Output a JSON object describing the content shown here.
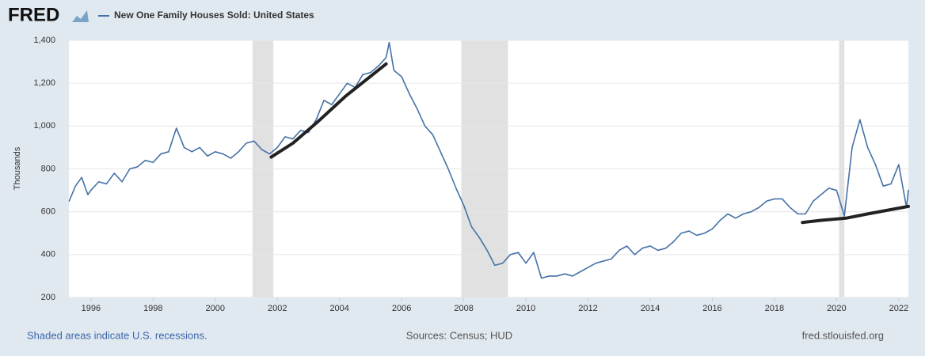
{
  "logo": "FRED",
  "chart_data": {
    "type": "line",
    "series": [
      {
        "name": "New One Family Houses Sold: United States",
        "color": "#4572a7",
        "x": [
          1995.3,
          1995.5,
          1995.7,
          1995.9,
          1996.0,
          1996.25,
          1996.5,
          1996.75,
          1997.0,
          1997.25,
          1997.5,
          1997.75,
          1998.0,
          1998.25,
          1998.5,
          1998.75,
          1999.0,
          1999.25,
          1999.5,
          1999.75,
          2000.0,
          2000.25,
          2000.5,
          2000.75,
          2001.0,
          2001.25,
          2001.5,
          2001.75,
          2002.0,
          2002.25,
          2002.5,
          2002.75,
          2003.0,
          2003.25,
          2003.5,
          2003.75,
          2004.0,
          2004.25,
          2004.5,
          2004.75,
          2005.0,
          2005.25,
          2005.5,
          2005.6,
          2005.75,
          2006.0,
          2006.25,
          2006.5,
          2006.75,
          2007.0,
          2007.25,
          2007.5,
          2007.75,
          2008.0,
          2008.25,
          2008.5,
          2008.75,
          2009.0,
          2009.25,
          2009.5,
          2009.75,
          2010.0,
          2010.25,
          2010.5,
          2010.75,
          2011.0,
          2011.25,
          2011.5,
          2011.75,
          2012.0,
          2012.25,
          2012.5,
          2012.75,
          2013.0,
          2013.25,
          2013.5,
          2013.75,
          2014.0,
          2014.25,
          2014.5,
          2014.75,
          2015.0,
          2015.25,
          2015.5,
          2015.75,
          2016.0,
          2016.25,
          2016.5,
          2016.75,
          2017.0,
          2017.25,
          2017.5,
          2017.75,
          2018.0,
          2018.25,
          2018.5,
          2018.75,
          2019.0,
          2019.25,
          2019.5,
          2019.75,
          2020.0,
          2020.25,
          2020.5,
          2020.75,
          2021.0,
          2021.25,
          2021.5,
          2021.75,
          2022.0,
          2022.25,
          2022.31
        ],
        "values": [
          650,
          720,
          760,
          680,
          700,
          740,
          730,
          780,
          740,
          800,
          810,
          840,
          830,
          870,
          880,
          990,
          900,
          880,
          900,
          860,
          880,
          870,
          850,
          880,
          920,
          930,
          890,
          870,
          900,
          950,
          940,
          980,
          970,
          1030,
          1120,
          1100,
          1150,
          1200,
          1180,
          1240,
          1250,
          1280,
          1320,
          1390,
          1260,
          1230,
          1150,
          1080,
          1000,
          960,
          880,
          800,
          710,
          630,
          530,
          480,
          420,
          350,
          360,
          400,
          410,
          360,
          410,
          290,
          300,
          300,
          310,
          300,
          320,
          340,
          360,
          370,
          380,
          420,
          440,
          400,
          430,
          440,
          420,
          430,
          460,
          500,
          510,
          490,
          500,
          520,
          560,
          590,
          570,
          590,
          600,
          620,
          650,
          660,
          660,
          620,
          590,
          590,
          650,
          680,
          710,
          700,
          580,
          900,
          1030,
          900,
          820,
          720,
          730,
          820,
          620,
          700
        ]
      }
    ],
    "trend_lines": [
      {
        "color": "#222222",
        "x": [
          2001.8,
          2002.5,
          2003.3,
          2004.2,
          2005.5
        ],
        "values": [
          855,
          920,
          1020,
          1140,
          1290
        ]
      },
      {
        "color": "#222222",
        "x": [
          2018.9,
          2019.5,
          2020.3,
          2021.0,
          2022.31
        ],
        "values": [
          550,
          560,
          570,
          590,
          625
        ]
      }
    ],
    "recessions": [
      [
        2001.2,
        2001.87
      ],
      [
        2007.92,
        2009.42
      ],
      [
        2020.08,
        2020.25
      ]
    ],
    "ylabel": "Thousands",
    "xlim": [
      1995.29,
      2022.31
    ],
    "ylim": [
      200,
      1400
    ],
    "xticks": [
      1996,
      1998,
      2000,
      2002,
      2004,
      2006,
      2008,
      2010,
      2012,
      2014,
      2016,
      2018,
      2020,
      2022
    ],
    "yticks": [
      200,
      400,
      600,
      800,
      {
        "value": 1000,
        "label": "1,000"
      },
      {
        "value": 1200,
        "label": "1,200"
      },
      {
        "value": 1400,
        "label": "1,400"
      }
    ],
    "grid": true
  },
  "footer": {
    "left": "Shaded areas indicate U.S. recessions.",
    "center": "Sources: Census; HUD",
    "right": "fred.stlouisfed.org"
  }
}
